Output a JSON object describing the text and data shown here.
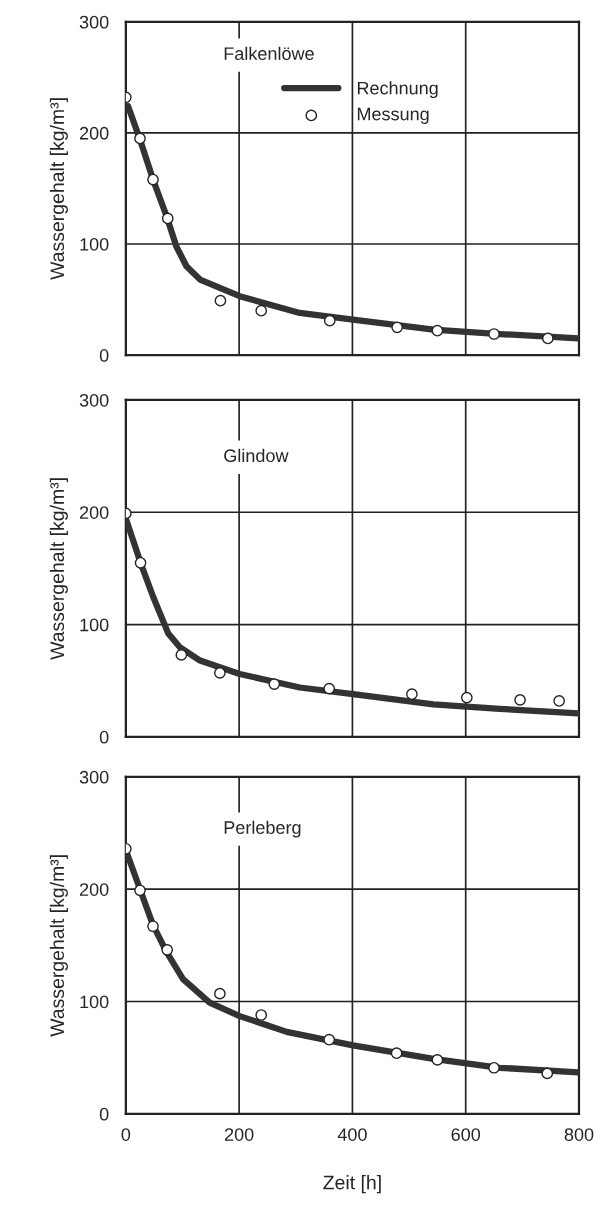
{
  "chart_data": [
    {
      "type": "line",
      "ylabel": "Wassergehalt [kg/m³]",
      "annotations": [
        "Falkenlöwe"
      ],
      "xlim": [
        0,
        800
      ],
      "ylim": [
        0,
        300
      ],
      "xticks": [
        0,
        200,
        400,
        600,
        800
      ],
      "yticks": [
        0,
        100,
        200,
        300
      ],
      "grid": true,
      "legend": "top",
      "tick_labels": "y",
      "series": [
        {
          "name": "Rechnung",
          "color": "#333333",
          "line_style": "solid",
          "marker": "none",
          "x": [
            4,
            25,
            48,
            72,
            89,
            107,
            131,
            201,
            307,
            401,
            543,
            660,
            799
          ],
          "values": [
            224,
            194,
            158,
            125,
            98,
            80,
            68,
            53,
            38,
            32,
            23,
            19,
            15
          ]
        },
        {
          "name": "Messung",
          "type": "scatter",
          "color": "#ffffff",
          "marker": "circle",
          "x": [
            0,
            25,
            48,
            74,
            167,
            239,
            360,
            479,
            550,
            650,
            745
          ],
          "values": [
            232,
            195,
            158,
            123,
            49,
            40,
            31,
            25,
            22,
            19,
            15
          ]
        }
      ]
    },
    {
      "type": "line",
      "ylabel": "Wassergehalt [kg/m³]",
      "annotations": [
        "Glindow"
      ],
      "xlim": [
        0,
        800
      ],
      "ylim": [
        0,
        300
      ],
      "xticks": [
        0,
        200,
        400,
        600,
        800
      ],
      "yticks": [
        0,
        100,
        200,
        300
      ],
      "grid": true,
      "tick_labels": "y",
      "series": [
        {
          "color": "#333333",
          "line_style": "solid",
          "marker": "none",
          "x": [
            1,
            26,
            48,
            75,
            95,
            131,
            201,
            307,
            401,
            543,
            660,
            799
          ],
          "values": [
            193,
            155,
            125,
            92,
            80,
            68,
            56,
            44,
            38,
            29,
            25,
            21
          ]
        },
        {
          "type": "scatter",
          "color": "#ffffff",
          "marker": "circle",
          "x": [
            0,
            26,
            98,
            166,
            262,
            359,
            505,
            602,
            696,
            765
          ],
          "values": [
            199,
            155,
            73,
            57,
            47,
            43,
            38,
            35,
            33,
            32
          ]
        }
      ]
    },
    {
      "type": "line",
      "xlabel": "Zeit [h]",
      "ylabel": "Wassergehalt [kg/m³]",
      "annotations": [
        "Perleberg"
      ],
      "xlim": [
        0,
        800
      ],
      "ylim": [
        0,
        300
      ],
      "xticks": [
        0,
        200,
        400,
        600,
        800
      ],
      "yticks": [
        0,
        100,
        200,
        300
      ],
      "grid": true,
      "series": [
        {
          "color": "#333333",
          "line_style": "solid",
          "marker": "none",
          "x": [
            2,
            25,
            48,
            72,
            101,
            148,
            201,
            284,
            401,
            543,
            660,
            799
          ],
          "values": [
            232,
            200,
            168,
            144,
            120,
            99,
            87,
            73,
            61,
            49,
            41,
            37
          ]
        },
        {
          "type": "scatter",
          "color": "#ffffff",
          "marker": "circle",
          "x": [
            0,
            25,
            48,
            73,
            166,
            239,
            359,
            478,
            550,
            650,
            744
          ],
          "values": [
            236,
            199,
            167,
            146,
            107,
            88,
            66,
            54,
            48,
            41,
            36
          ]
        }
      ]
    }
  ]
}
